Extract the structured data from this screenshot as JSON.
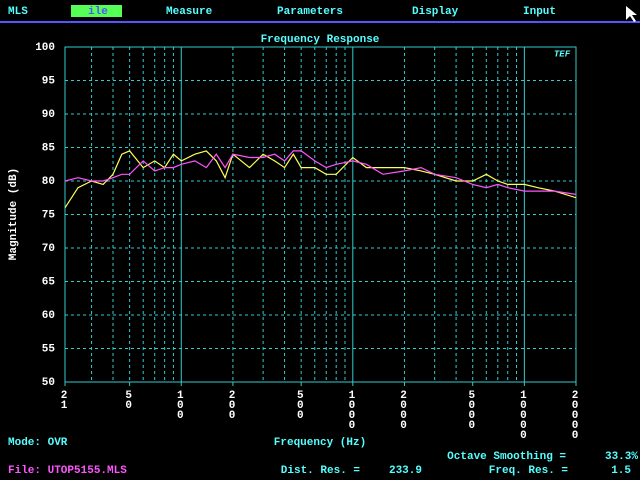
{
  "menu": [
    "MLS",
    "ile",
    "Measure",
    "Parameters",
    "Display",
    "Input"
  ],
  "chart_data": {
    "type": "line",
    "title": "Frequency Response",
    "logo": "TEF",
    "x_label": "Frequency (Hz)",
    "y_label": "Magnitude (dB)",
    "xlog": true,
    "grid": true,
    "xlim": [
      21,
      20000
    ],
    "ylim": [
      50,
      100
    ],
    "yticks": [
      50,
      55,
      60,
      65,
      70,
      75,
      80,
      85,
      90,
      95,
      100
    ],
    "xticks": [
      21,
      50,
      100,
      200,
      500,
      1000,
      2000,
      5000,
      10000,
      20000
    ],
    "xminor": [
      30,
      40,
      50,
      60,
      70,
      80,
      90,
      200,
      300,
      400,
      500,
      600,
      700,
      800,
      900,
      2000,
      3000,
      4000,
      5000,
      6000,
      7000,
      8000,
      9000
    ],
    "xmajor": [
      100,
      1000,
      10000
    ],
    "x": [
      21,
      25,
      30,
      35,
      40,
      45,
      50,
      60,
      70,
      80,
      90,
      100,
      120,
      140,
      160,
      180,
      200,
      250,
      300,
      350,
      400,
      450,
      500,
      600,
      700,
      800,
      1000,
      1200,
      1500,
      2000,
      2500,
      3000,
      4000,
      5000,
      6000,
      7000,
      8000,
      10000,
      12000,
      15000,
      20000
    ],
    "series": [
      {
        "color": "#ffff55",
        "values": [
          76,
          79,
          80,
          79.5,
          81,
          84,
          84.5,
          82,
          83,
          82,
          84,
          83,
          84,
          84.5,
          83,
          80.5,
          84,
          82,
          84,
          83,
          82,
          84,
          82,
          82,
          81,
          81,
          83.5,
          82,
          82,
          82,
          81.5,
          81,
          80,
          80,
          81,
          80,
          79.5,
          79.5,
          79,
          78.5,
          77.5
        ]
      },
      {
        "color": "#ff55ff",
        "values": [
          80,
          80.5,
          80,
          80,
          80.5,
          81,
          81,
          83,
          81.5,
          82,
          82,
          82.5,
          83,
          82,
          84,
          82,
          84,
          83.5,
          83.5,
          84,
          83,
          84.5,
          84.5,
          83,
          82,
          82.5,
          83,
          82.5,
          81,
          81.5,
          82,
          81,
          80.5,
          79.5,
          79,
          79.5,
          79,
          78.5,
          78.5,
          78.5,
          78
        ]
      }
    ]
  },
  "status": {
    "mode": "Mode: OVR",
    "file": "File: UTOP5155.MLS",
    "smoothing_label": "Octave Smoothing =",
    "smoothing_value": "33.3%",
    "dist_label": "Dist. Res. =",
    "dist_value": "233.9",
    "freq_label": "Freq. Res. =",
    "freq_value": "1.5"
  }
}
